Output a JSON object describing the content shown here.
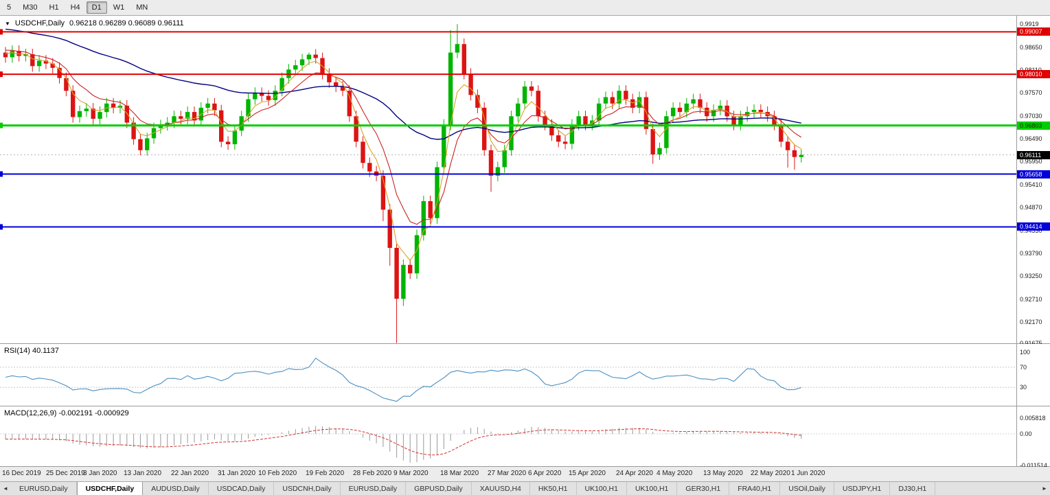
{
  "toolbar": {
    "timeframes": [
      {
        "label": "5",
        "active": false
      },
      {
        "label": "M30",
        "active": false
      },
      {
        "label": "H1",
        "active": false
      },
      {
        "label": "H4",
        "active": false
      },
      {
        "label": "D1",
        "active": true
      },
      {
        "label": "W1",
        "active": false
      },
      {
        "label": "MN",
        "active": false
      }
    ]
  },
  "chart": {
    "symbol_dropdown": "▼",
    "title_symbol": "USDCHF,Daily",
    "title_ohlc": "0.96218 0.96289 0.96089 0.96111",
    "axis_labels": [
      "0.9919",
      "0.98650",
      "0.98110",
      "0.97570",
      "0.97030",
      "0.96490",
      "0.95950",
      "0.95410",
      "0.94870",
      "0.94330",
      "0.93790",
      "0.93250",
      "0.92710",
      "0.92170",
      "0.91675"
    ],
    "hlines": [
      {
        "price": 0.99007,
        "label": "0.99007",
        "color": "#e00000",
        "width": 2,
        "text_color": "#ffffff"
      },
      {
        "price": 0.9801,
        "label": "0.98010",
        "color": "#e00000",
        "width": 2,
        "text_color": "#ffffff"
      },
      {
        "price": 0.96803,
        "label": "0.96803",
        "color": "#00ce00",
        "width": 3,
        "text_color": "#1d2200"
      },
      {
        "price": 0.95658,
        "label": "0.95658",
        "color": "#0000d8",
        "width": 2,
        "text_color": "#ffffff"
      },
      {
        "price": 0.94414,
        "label": "0.94414",
        "color": "#0000d8",
        "width": 2,
        "text_color": "#ffffff"
      }
    ],
    "price_tag": {
      "label": "0.96111",
      "price": 0.96111,
      "bg": "#000000",
      "text_color": "#ffffff"
    }
  },
  "chart_data": {
    "type": "candlestick",
    "symbol": "USDCHF",
    "timeframe": "Daily",
    "first_open": 0.9852,
    "wick_default": 0.0013,
    "closes": [
      0.9841,
      0.9856,
      0.9844,
      0.9848,
      0.982,
      0.9833,
      0.9826,
      0.9816,
      0.9792,
      0.9762,
      0.97,
      0.9714,
      0.972,
      0.9696,
      0.9712,
      0.9732,
      0.9722,
      0.9727,
      0.9687,
      0.9648,
      0.9622,
      0.965,
      0.9674,
      0.9681,
      0.9687,
      0.9702,
      0.9696,
      0.9712,
      0.9692,
      0.9722,
      0.9732,
      0.9716,
      0.9642,
      0.9636,
      0.9668,
      0.9702,
      0.9742,
      0.9757,
      0.975,
      0.974,
      0.9762,
      0.9792,
      0.9812,
      0.9822,
      0.9836,
      0.9847,
      0.9839,
      0.9802,
      0.9782,
      0.9772,
      0.9762,
      0.9702,
      0.9642,
      0.9592,
      0.9572,
      0.9562,
      0.9482,
      0.9392,
      0.9272,
      0.9352,
      0.9332,
      0.9422,
      0.9502,
      0.9462,
      0.9582,
      0.9682,
      0.9852,
      0.9872,
      0.9802,
      0.9752,
      0.9722,
      0.9622,
      0.9562,
      0.9582,
      0.9622,
      0.9702,
      0.9732,
      0.9772,
      0.9762,
      0.9702,
      0.9682,
      0.9657,
      0.9642,
      0.9637,
      0.9682,
      0.9702,
      0.9682,
      0.9692,
      0.9732,
      0.9747,
      0.9732,
      0.9762,
      0.9742,
      0.9722,
      0.9747,
      0.9672,
      0.9612,
      0.9627,
      0.9702,
      0.9722,
      0.9712,
      0.9732,
      0.9742,
      0.9722,
      0.9702,
      0.9717,
      0.9727,
      0.9702,
      0.9682,
      0.9702,
      0.9712,
      0.9717,
      0.9712,
      0.9702,
      0.9682,
      0.9642,
      0.9622,
      0.9606,
      0.9611
    ],
    "wick_overrides": {
      "20": {
        "l": 0.961
      },
      "45": {
        "h": 0.9852
      },
      "56": {
        "l": 0.9455
      },
      "57": {
        "l": 0.935
      },
      "58": {
        "l": 0.9168
      },
      "59": {
        "l": 0.9255
      },
      "66": {
        "h": 0.9905
      },
      "67": {
        "h": 0.9919
      },
      "72": {
        "l": 0.9524
      },
      "96": {
        "l": 0.959
      },
      "116": {
        "l": 0.9581
      },
      "117": {
        "l": 0.9576
      }
    },
    "ma_warmup": {
      "start": 0.998,
      "end": 0.985,
      "bars": 45
    },
    "ma": [
      {
        "name": "ma-slow",
        "period": 50,
        "color": "#000080",
        "width": 1.4
      },
      {
        "name": "ma-mid",
        "period": 9,
        "color": "#cc2222",
        "width": 1.1
      },
      {
        "name": "ma-fast",
        "period": 4,
        "color": "#d9a227",
        "width": 1.1
      }
    ],
    "date_ticks": [
      {
        "label": "16 Dec 2019",
        "i": 0
      },
      {
        "label": "25 Dec 2019",
        "i": 6.5
      },
      {
        "label": "3 Jan 2020",
        "i": 12
      },
      {
        "label": "13 Jan 2020",
        "i": 18
      },
      {
        "label": "22 Jan 2020",
        "i": 25
      },
      {
        "label": "31 Jan 2020",
        "i": 32
      },
      {
        "label": "10 Feb 2020",
        "i": 38
      },
      {
        "label": "19 Feb 2020",
        "i": 45
      },
      {
        "label": "28 Feb 2020",
        "i": 52
      },
      {
        "label": "9 Mar 2020",
        "i": 58
      },
      {
        "label": "18 Mar 2020",
        "i": 65
      },
      {
        "label": "27 Mar 2020",
        "i": 72
      },
      {
        "label": "6 Apr 2020",
        "i": 78
      },
      {
        "label": "15 Apr 2020",
        "i": 84
      },
      {
        "label": "24 Apr 2020",
        "i": 91
      },
      {
        "label": "4 May 2020",
        "i": 97
      },
      {
        "label": "13 May 2020",
        "i": 104
      },
      {
        "label": "22 May 2020",
        "i": 111
      },
      {
        "label": "1 Jun 2020",
        "i": 117
      }
    ]
  },
  "rsi": {
    "label": "RSI(14) 40.1137",
    "period": 14,
    "value": "40.1137",
    "levels": [
      "100",
      "70",
      "30"
    ],
    "color": "#4a8fc0"
  },
  "macd": {
    "label": "MACD(12,26,9) -0.002191 -0.000929",
    "values": "-0.002191 -0.000929",
    "axis": [
      "0.005818",
      "0.00",
      "-0.011514"
    ]
  },
  "colors": {
    "up": "#00b400",
    "down": "#dc1414",
    "macd_hist": "#9a9a9a",
    "macd_signal": "#cc3333",
    "rsi": "#4a8fc0"
  },
  "tabs": {
    "left_arrow": "◄",
    "right_arrow": "►",
    "items": [
      {
        "label": "EURUSD,Daily",
        "active": false
      },
      {
        "label": "USDCHF,Daily",
        "active": true
      },
      {
        "label": "AUDUSD,Daily",
        "active": false
      },
      {
        "label": "USDCAD,Daily",
        "active": false
      },
      {
        "label": "USDCNH,Daily",
        "active": false
      },
      {
        "label": "EURUSD,Daily",
        "active": false
      },
      {
        "label": "GBPUSD,Daily",
        "active": false
      },
      {
        "label": "XAUUSD,H4",
        "active": false
      },
      {
        "label": "HK50,H1",
        "active": false
      },
      {
        "label": "UK100,H1",
        "active": false
      },
      {
        "label": "UK100,H1",
        "active": false
      },
      {
        "label": "GER30,H1",
        "active": false
      },
      {
        "label": "FRA40,H1",
        "active": false
      },
      {
        "label": "USOil,Daily",
        "active": false
      },
      {
        "label": "USDJPY,H1",
        "active": false
      },
      {
        "label": "DJ30,H1",
        "active": false
      }
    ]
  }
}
